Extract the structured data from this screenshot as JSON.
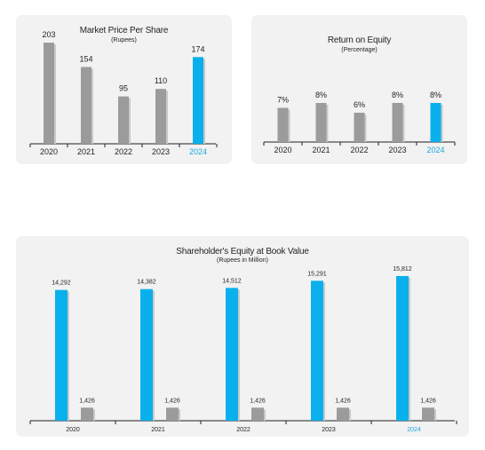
{
  "colors": {
    "current_year": "#0ab0ec",
    "prior_years": "#9b9b9b",
    "secondary_bar": "#9b9b9b",
    "axis": "#231f20",
    "panel_background": "#f2f2f2",
    "bar_shadow": "#c9c9c9",
    "highlight_label": "#1ea8df"
  },
  "chart_data": [
    {
      "id": "mpps",
      "type": "bar",
      "title": "Market Price Per Share",
      "subtitle": "(Rupees)",
      "categories": [
        "2020",
        "2021",
        "2022",
        "2023",
        "2024"
      ],
      "values": [
        203,
        154,
        95,
        110,
        174
      ],
      "value_labels": [
        "203",
        "154",
        "95",
        "110",
        "174"
      ],
      "highlight_index": 4,
      "ylim": [
        0,
        203
      ]
    },
    {
      "id": "roe",
      "type": "bar",
      "title": "Return on Equity",
      "subtitle": "(Percentage)",
      "categories": [
        "2020",
        "2021",
        "2022",
        "2023",
        "2024"
      ],
      "values": [
        7,
        8,
        6,
        8,
        8
      ],
      "value_labels": [
        "7%",
        "8%",
        "6%",
        "8%",
        "8%"
      ],
      "highlight_index": 4,
      "ylim": [
        0,
        8
      ]
    },
    {
      "id": "equity",
      "type": "bar",
      "title": "Shareholder's Equity at Book Value",
      "subtitle": "(Rupees in Million)",
      "categories": [
        "2020",
        "2021",
        "2022",
        "2023",
        "2024"
      ],
      "highlight_index": 4,
      "series": [
        {
          "values": [
            14292,
            14382,
            14512,
            15291,
            15812
          ],
          "value_labels": [
            "14,292",
            "14,382",
            "14,512",
            "15,291",
            "15,812"
          ]
        },
        {
          "values": [
            1426,
            1426,
            1426,
            1426,
            1426
          ],
          "value_labels": [
            "1,426",
            "1,426",
            "1,426",
            "1,426",
            "1,426"
          ]
        }
      ],
      "ylim": [
        0,
        15812
      ]
    }
  ]
}
